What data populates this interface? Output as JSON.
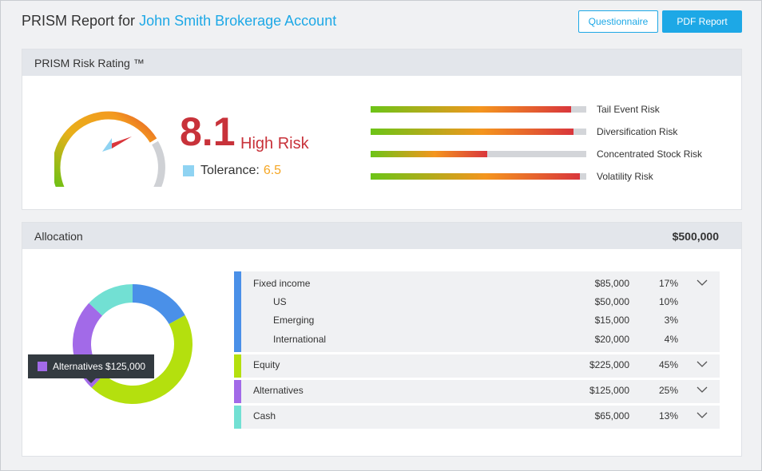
{
  "header": {
    "title_prefix": "PRISM Report for",
    "account_name": "John Smith Brokerage Account",
    "buttons": {
      "questionnaire": "Questionnaire",
      "pdf_report": "PDF Report"
    }
  },
  "risk": {
    "title": "PRISM Risk Rating ™",
    "score": "8.1",
    "score_label": "High Risk",
    "tolerance_label": "Tolerance:",
    "tolerance_value": "6.5",
    "colors": {
      "score": "#c8323a",
      "tolerance": "#f5a623",
      "tolerance_swatch": "#8fd3f2"
    },
    "bars": [
      {
        "label": "Tail Event Risk",
        "level": 0.93
      },
      {
        "label": "Diversification Risk",
        "level": 0.94
      },
      {
        "label": "Concentrated Stock Risk",
        "level": 0.54
      },
      {
        "label": "Volatility Risk",
        "level": 0.97
      }
    ]
  },
  "allocation": {
    "title": "Allocation",
    "total": "$500,000",
    "tooltip": "Alternatives $125,000",
    "groups": [
      {
        "name": "Fixed income",
        "amount": "$85,000",
        "pct": "17%",
        "color": "#4a90e8",
        "children": [
          {
            "name": "US",
            "amount": "$50,000",
            "pct": "10%"
          },
          {
            "name": "Emerging",
            "amount": "$15,000",
            "pct": "3%"
          },
          {
            "name": "International",
            "amount": "$20,000",
            "pct": "4%"
          }
        ]
      },
      {
        "name": "Equity",
        "amount": "$225,000",
        "pct": "45%",
        "color": "#b4e00e",
        "children": []
      },
      {
        "name": "Alternatives",
        "amount": "$125,000",
        "pct": "25%",
        "color": "#a26ae8",
        "children": []
      },
      {
        "name": "Cash",
        "amount": "$65,000",
        "pct": "13%",
        "color": "#72e0d3",
        "children": []
      }
    ],
    "donut_values": [
      17,
      45,
      25,
      13
    ]
  }
}
